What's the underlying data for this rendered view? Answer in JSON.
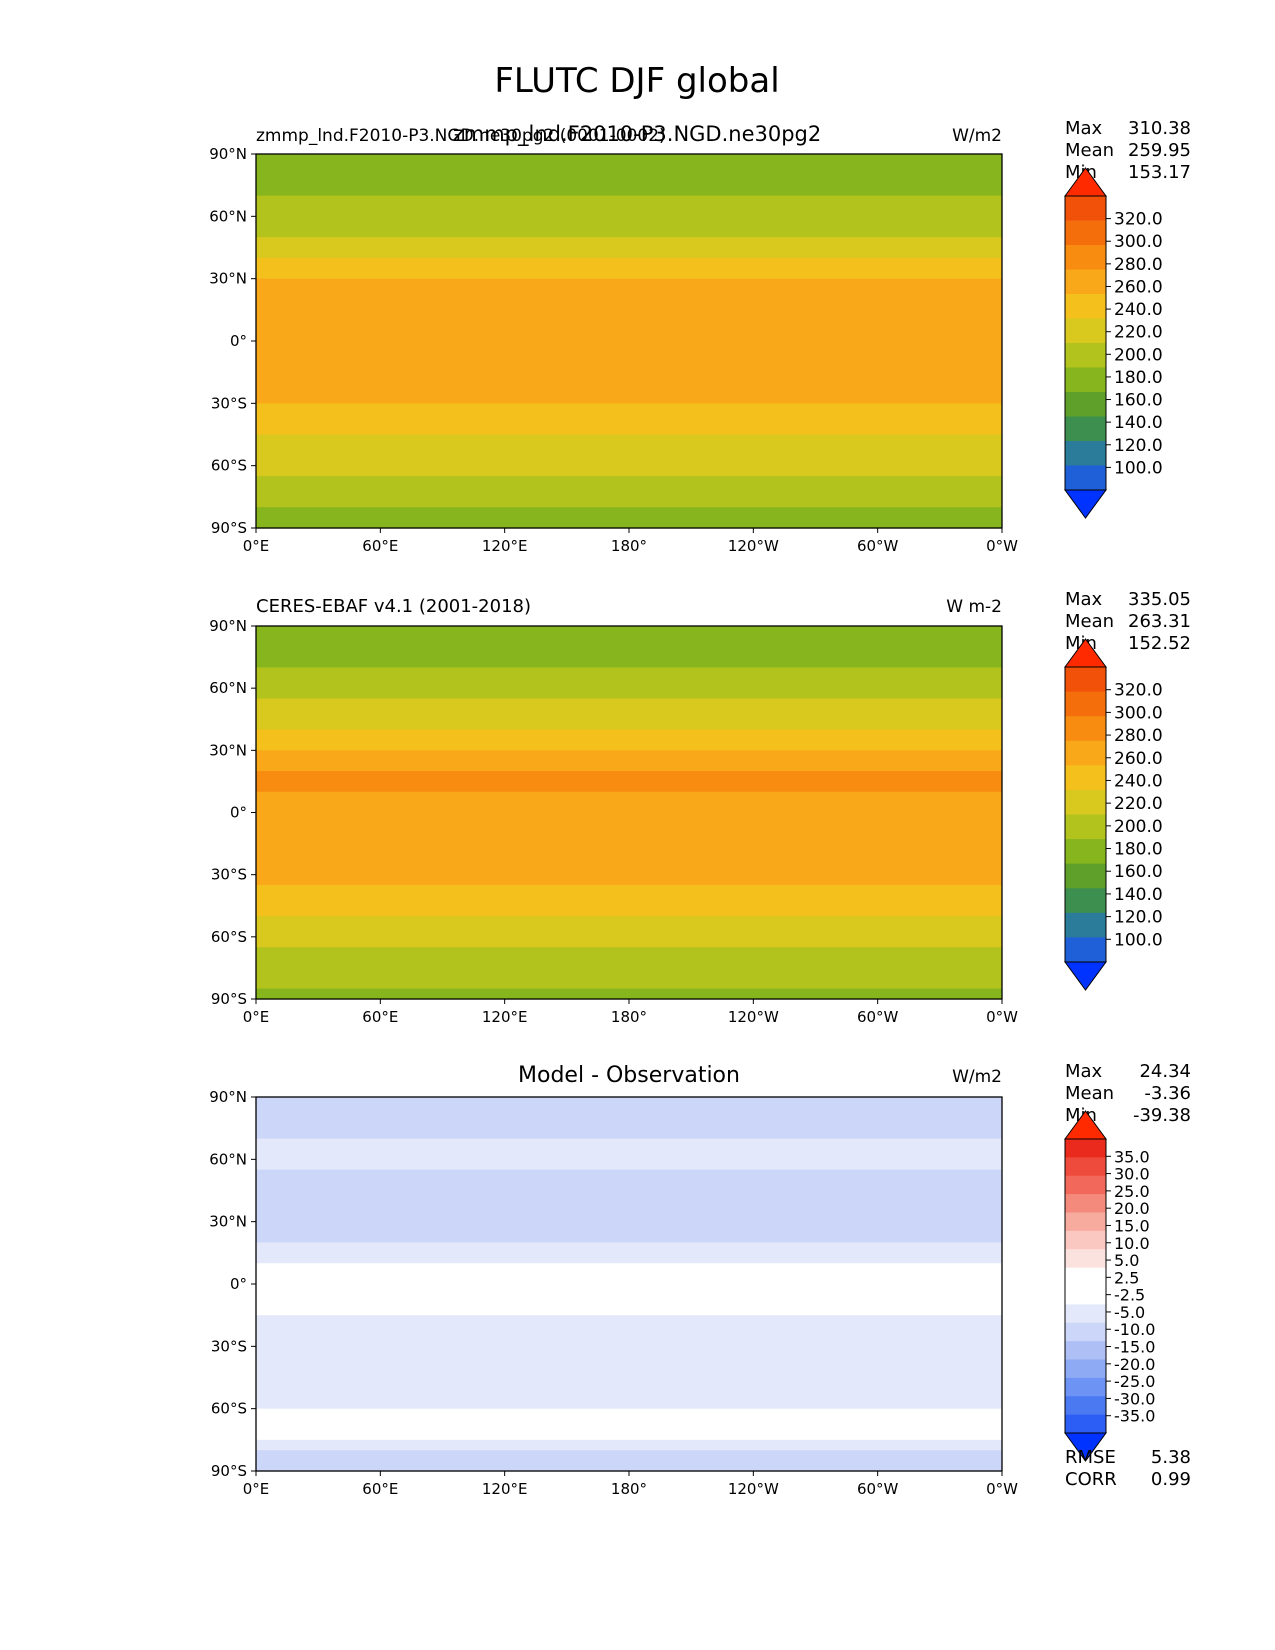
{
  "figure": {
    "title": "FLUTC DJF global"
  },
  "x_tick_labels": [
    "0°E",
    "60°E",
    "120°E",
    "180°",
    "120°W",
    "60°W",
    "0°W"
  ],
  "y_tick_labels": [
    "90°N",
    "60°N",
    "30°N",
    "0°",
    "30°S",
    "60°S",
    "90°S"
  ],
  "colors": {
    "abs_cmap": [
      "#0033ff",
      "#1f5fd8",
      "#2a7c9a",
      "#3d8f4f",
      "#5fa02a",
      "#86b51e",
      "#b2c31e",
      "#d9c81e",
      "#f4c01c",
      "#f8a818",
      "#f78c10",
      "#f46e0c",
      "#f2510a",
      "#ff2a00"
    ],
    "diff_cmap": [
      "#0033ff",
      "#2c5df4",
      "#4a79f2",
      "#6d93f4",
      "#8eaaf4",
      "#aebff6",
      "#cbd6f8",
      "#e3e9fb",
      "#ffffff",
      "#ffffff",
      "#fbe2de",
      "#fac8c0",
      "#f7aa9e",
      "#f48a7c",
      "#f2695b",
      "#ef4b3c",
      "#ea2a1c",
      "#ff2a00"
    ]
  },
  "chart_data": [
    {
      "type": "heatmap",
      "panel": "model",
      "title": "zmmp_lnd.F2010-P3.NGD.ne30pg2",
      "left_label": "zmmp_lnd.F2010-P3.NGD.ne30pg2 (0001-0002)",
      "units": "W/m2",
      "stats": {
        "max_label": "Max",
        "max": "310.38",
        "mean_label": "Mean",
        "mean": "259.95",
        "min_label": "Min",
        "min": "153.17"
      },
      "colorbar_levels": [
        "320.0",
        "300.0",
        "280.0",
        "260.0",
        "240.0",
        "220.0",
        "200.0",
        "180.0",
        "160.0",
        "140.0",
        "120.0",
        "100.0"
      ],
      "x_range": [
        0,
        360
      ],
      "y_range": [
        -90,
        90
      ],
      "zonal_profile": {
        "lat": [
          -90,
          -80,
          -70,
          -60,
          -50,
          -40,
          -30,
          -20,
          -10,
          0,
          10,
          20,
          30,
          40,
          50,
          60,
          70,
          80,
          90
        ],
        "value": [
          175,
          205,
          215,
          222,
          235,
          245,
          262,
          272,
          270,
          268,
          275,
          278,
          255,
          240,
          220,
          210,
          200,
          185,
          180
        ]
      }
    },
    {
      "type": "heatmap",
      "panel": "observation",
      "title": "CERES-EBAF v4.1 (2001-2018)",
      "units": "W m-2",
      "stats": {
        "max_label": "Max",
        "max": "335.05",
        "mean_label": "Mean",
        "mean": "263.31",
        "min_label": "Min",
        "min": "152.52"
      },
      "colorbar_levels": [
        "320.0",
        "300.0",
        "280.0",
        "260.0",
        "240.0",
        "220.0",
        "200.0",
        "180.0",
        "160.0",
        "140.0",
        "120.0",
        "100.0"
      ],
      "x_range": [
        0,
        360
      ],
      "y_range": [
        -90,
        90
      ],
      "zonal_profile": {
        "lat": [
          -90,
          -80,
          -70,
          -60,
          -50,
          -40,
          -30,
          -20,
          -10,
          0,
          10,
          20,
          30,
          40,
          50,
          60,
          70,
          80,
          90
        ],
        "value": [
          178,
          208,
          218,
          225,
          238,
          248,
          265,
          278,
          275,
          272,
          280,
          284,
          260,
          244,
          224,
          214,
          203,
          188,
          182
        ]
      }
    },
    {
      "type": "heatmap",
      "panel": "difference",
      "title": "Model - Observation",
      "units": "W/m2",
      "stats": {
        "max_label": "Max",
        "max": "24.34",
        "mean_label": "Mean",
        "mean": "-3.36",
        "min_label": "Min",
        "min": "-39.38"
      },
      "colorbar_levels": [
        "35.0",
        "30.0",
        "25.0",
        "20.0",
        "15.0",
        "10.0",
        "5.0",
        "2.5",
        "-2.5",
        "-5.0",
        "-10.0",
        "-15.0",
        "-20.0",
        "-25.0",
        "-30.0",
        "-35.0"
      ],
      "metrics": {
        "rmse_label": "RMSE",
        "rmse": "5.38",
        "corr_label": "CORR",
        "corr": "0.99"
      },
      "x_range": [
        0,
        360
      ],
      "y_range": [
        -90,
        90
      ],
      "zonal_profile": {
        "lat": [
          -90,
          -80,
          -70,
          -60,
          -50,
          -40,
          -30,
          -20,
          -10,
          0,
          10,
          20,
          30,
          40,
          50,
          60,
          70,
          80,
          90
        ],
        "value": [
          -8,
          -6,
          3,
          -3,
          -4,
          -5,
          -3,
          -4,
          -2,
          2,
          -3,
          -5,
          -6,
          -5,
          -6,
          -4,
          -5,
          -6,
          -5
        ]
      }
    }
  ]
}
